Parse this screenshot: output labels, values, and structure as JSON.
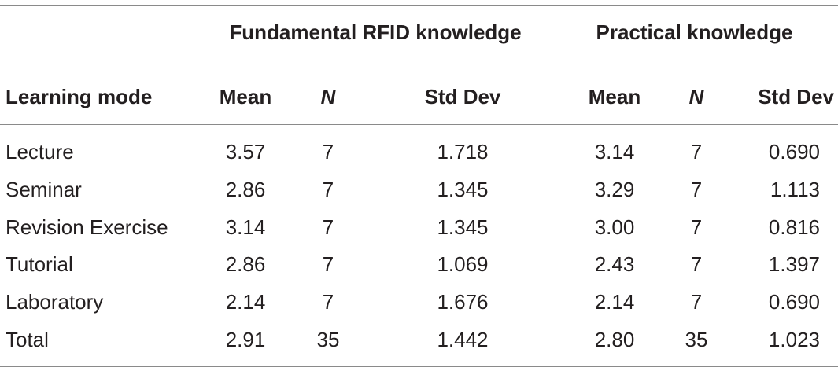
{
  "header": {
    "group_a": "Fundamental RFID knowledge",
    "group_b": "Practical knowledge",
    "row_label": "Learning mode",
    "mean": "Mean",
    "n": "N",
    "std_dev": "Std Dev"
  },
  "rows": [
    {
      "mode": "Lecture",
      "a_mean": "3.57",
      "a_n": "7",
      "a_sd": "1.718",
      "b_mean": "3.14",
      "b_n": "7",
      "b_sd": "0.690"
    },
    {
      "mode": "Seminar",
      "a_mean": "2.86",
      "a_n": "7",
      "a_sd": "1.345",
      "b_mean": "3.29",
      "b_n": "7",
      "b_sd": "1.113"
    },
    {
      "mode": "Revision Exercise",
      "a_mean": "3.14",
      "a_n": "7",
      "a_sd": "1.345",
      "b_mean": "3.00",
      "b_n": "7",
      "b_sd": "0.816"
    },
    {
      "mode": "Tutorial",
      "a_mean": "2.86",
      "a_n": "7",
      "a_sd": "1.069",
      "b_mean": "2.43",
      "b_n": "7",
      "b_sd": "1.397"
    },
    {
      "mode": "Laboratory",
      "a_mean": "2.14",
      "a_n": "7",
      "a_sd": "1.676",
      "b_mean": "2.14",
      "b_n": "7",
      "b_sd": "0.690"
    },
    {
      "mode": "Total",
      "a_mean": "2.91",
      "a_n": "35",
      "a_sd": "1.442",
      "b_mean": "2.80",
      "b_n": "35",
      "b_sd": "1.023"
    }
  ]
}
